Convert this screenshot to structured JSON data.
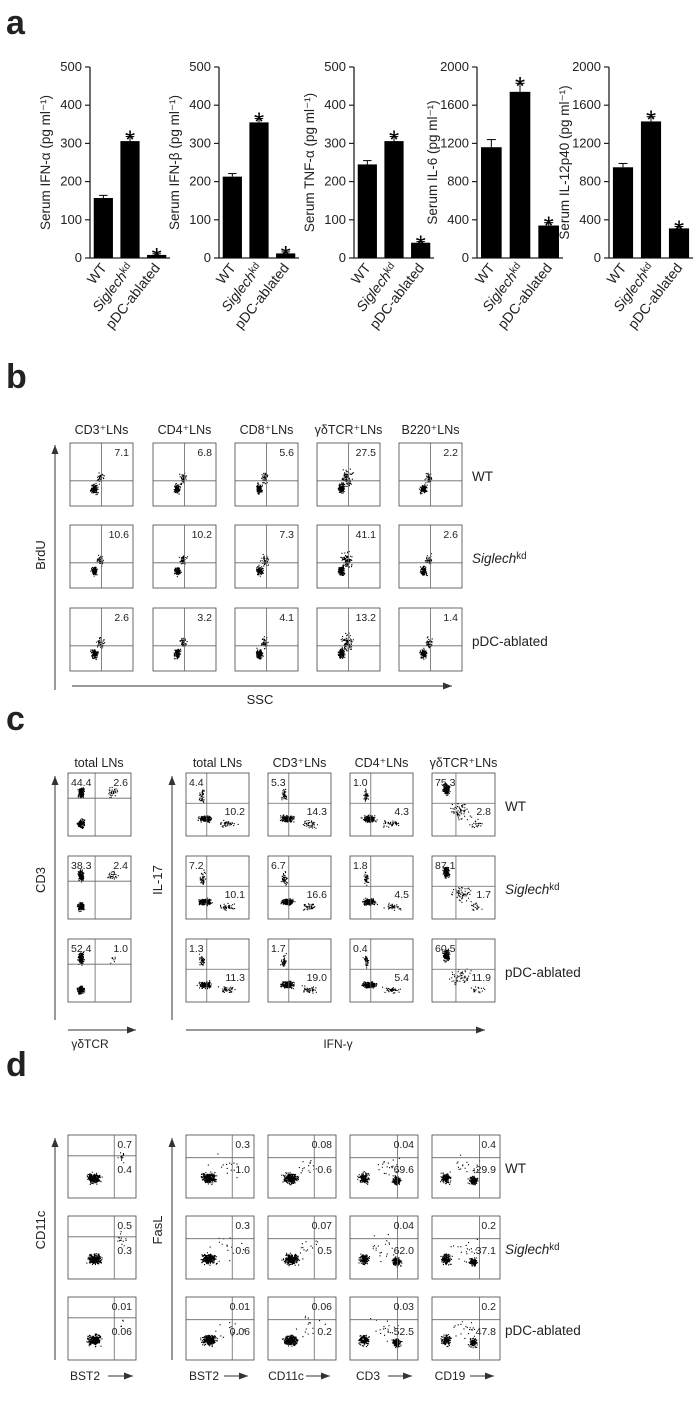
{
  "panel_letters": {
    "a": "a",
    "b": "b",
    "c": "c",
    "d": "d"
  },
  "chart_data": [
    {
      "type": "bar",
      "ylabel": "Serum IFN-α (pg ml⁻¹)",
      "categories": [
        "WT",
        "Siglechkd",
        "pDC-ablated"
      ],
      "values": [
        157,
        306,
        8
      ],
      "errors": [
        7,
        12,
        3
      ],
      "significant": [
        false,
        true,
        true
      ],
      "ylim": [
        0,
        500
      ],
      "yticks": [
        0,
        100,
        200,
        300,
        400,
        500
      ]
    },
    {
      "type": "bar",
      "ylabel": "Serum IFN-β (pg ml⁻¹)",
      "categories": [
        "WT",
        "Siglechkd",
        "pDC-ablated"
      ],
      "values": [
        213,
        355,
        12
      ],
      "errors": [
        8,
        10,
        4
      ],
      "significant": [
        false,
        true,
        true
      ],
      "ylim": [
        0,
        500
      ],
      "yticks": [
        0,
        100,
        200,
        300,
        400,
        500
      ]
    },
    {
      "type": "bar",
      "ylabel": "Serum TNF-α (pg ml⁻¹)",
      "categories": [
        "WT",
        "Siglechkd",
        "pDC-ablated"
      ],
      "values": [
        245,
        306,
        40
      ],
      "errors": [
        10,
        12,
        3
      ],
      "significant": [
        false,
        true,
        true
      ],
      "ylim": [
        0,
        500
      ],
      "yticks": [
        0,
        100,
        200,
        300,
        400,
        500
      ]
    },
    {
      "type": "bar",
      "ylabel": "Serum IL-6 (pg ml⁻¹)",
      "categories": [
        "WT",
        "Siglechkd",
        "pDC-ablated"
      ],
      "values": [
        1160,
        1740,
        340
      ],
      "errors": [
        80,
        90,
        30
      ],
      "significant": [
        false,
        true,
        true
      ],
      "ylim": [
        0,
        2000
      ],
      "yticks": [
        0,
        400,
        800,
        1200,
        1600,
        2000
      ]
    },
    {
      "type": "bar",
      "ylabel": "Serum IL-12p40 (pg ml⁻¹)",
      "categories": [
        "WT",
        "Siglechkd",
        "pDC-ablated"
      ],
      "values": [
        950,
        1430,
        310
      ],
      "errors": [
        40,
        50,
        20
      ],
      "significant": [
        false,
        true,
        true
      ],
      "ylim": [
        0,
        2000
      ],
      "yticks": [
        0,
        400,
        800,
        1200,
        1600,
        2000
      ]
    }
  ],
  "bar_category_labels": {
    "wt": "WT",
    "siglech": "Siglech",
    "siglech_sup": "kd",
    "pdc": "pDC-ablated"
  },
  "significance_marker": "*",
  "row_labels": {
    "wt": "WT",
    "siglech": "Siglech",
    "siglech_sup": "kd",
    "pdc": "pDC-ablated"
  },
  "panel_b": {
    "columns": [
      "CD3⁺LNs",
      "CD4⁺LNs",
      "CD8⁺LNs",
      "γδTCR⁺LNs",
      "B220⁺LNs"
    ],
    "values": [
      [
        "7.1",
        "6.8",
        "5.6",
        "27.5",
        "2.2"
      ],
      [
        "10.6",
        "10.2",
        "7.3",
        "41.1",
        "2.6"
      ],
      [
        "2.6",
        "3.2",
        "4.1",
        "13.2",
        "1.4"
      ]
    ],
    "y_axis": "BrdU",
    "x_axis": "SSC"
  },
  "panel_c": {
    "left_column": "total LNs",
    "left_values": [
      [
        "44.4",
        "2.6"
      ],
      [
        "38.3",
        "2.4"
      ],
      [
        "52.4",
        "1.0"
      ]
    ],
    "left_y_axis": "CD3",
    "left_x_axis": "γδTCR",
    "columns": [
      "total LNs",
      "CD3⁺LNs",
      "CD4⁺LNs",
      "γδTCR⁺LNs"
    ],
    "values": [
      [
        [
          "4.4",
          "10.2"
        ],
        [
          "5.3",
          "14.3"
        ],
        [
          "1.0",
          "4.3"
        ],
        [
          "75.3",
          "2.8"
        ]
      ],
      [
        [
          "7.2",
          "10.1"
        ],
        [
          "6.7",
          "16.6"
        ],
        [
          "1.8",
          "4.5"
        ],
        [
          "87.1",
          "1.7"
        ]
      ],
      [
        [
          "1.3",
          "11.3"
        ],
        [
          "1.7",
          "19.0"
        ],
        [
          "0.4",
          "5.4"
        ],
        [
          "60.5",
          "11.9"
        ]
      ]
    ],
    "y_axis": "IL-17",
    "x_axis": "IFN-γ"
  },
  "panel_d": {
    "left_values": [
      [
        "0.7",
        "0.4"
      ],
      [
        "0.5",
        "0.3"
      ],
      [
        "0.01",
        "0.06"
      ]
    ],
    "left_y_axis": "CD11c",
    "left_x_axis": "BST2",
    "values": [
      [
        [
          "0.3",
          "1.0"
        ],
        [
          "0.08",
          "0.6"
        ],
        [
          "0.04",
          "69.6"
        ],
        [
          "0.4",
          "29.9"
        ]
      ],
      [
        [
          "0.3",
          "0.6"
        ],
        [
          "0.07",
          "0.5"
        ],
        [
          "0.04",
          "62.0"
        ],
        [
          "0.2",
          "37.1"
        ]
      ],
      [
        [
          "0.01",
          "0.06"
        ],
        [
          "0.06",
          "0.2"
        ],
        [
          "0.03",
          "52.5"
        ],
        [
          "0.2",
          "47.8"
        ]
      ]
    ],
    "y_axis": "FasL",
    "x_axes": [
      "BST2",
      "CD11c",
      "CD3",
      "CD19"
    ]
  }
}
